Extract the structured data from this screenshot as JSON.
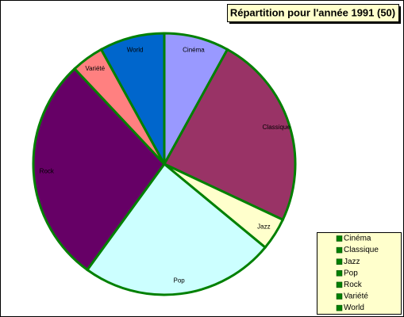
{
  "chart_data": {
    "type": "pie",
    "title": "Répartition pour l'année 1991 (50)",
    "categories": [
      "Cinéma",
      "Classique",
      "Jazz",
      "Pop",
      "Rock",
      "Variété",
      "World"
    ],
    "values": [
      4,
      12,
      2,
      12,
      14,
      2,
      4
    ],
    "colors": [
      "#9999ff",
      "#993366",
      "#ffffcc",
      "#ccffff",
      "#660066",
      "#ff8080",
      "#0066cc"
    ]
  }
}
